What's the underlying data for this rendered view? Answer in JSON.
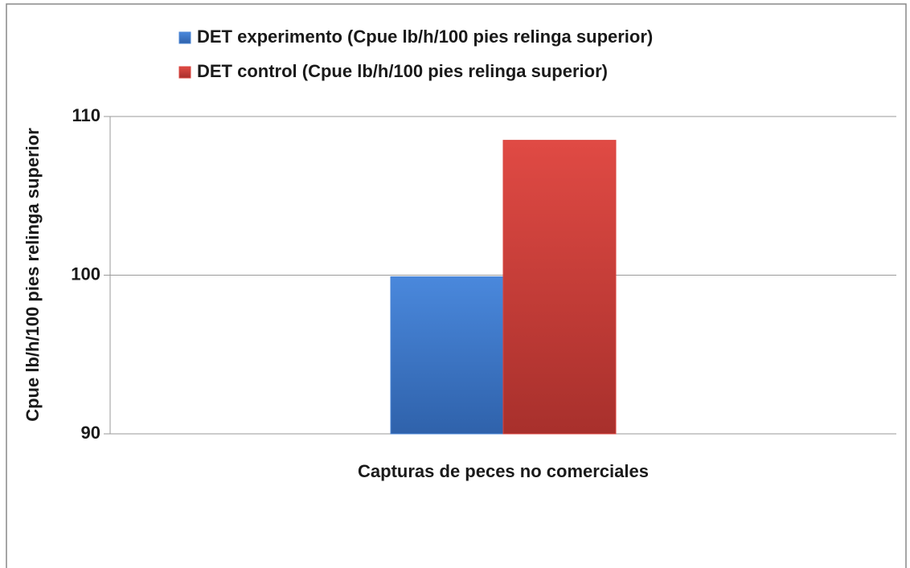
{
  "chart_data": {
    "type": "bar",
    "ylabel": "Cpue lb/h/100 pies relinga superior",
    "xlabel": "Capturas de peces no comerciales",
    "categories": [
      null
    ],
    "series": [
      {
        "name": "DET experimento (Cpue lb/h/100 pies relinga superior)",
        "color": "#4a84d4",
        "values": [
          99.9
        ]
      },
      {
        "name": "DET control (Cpue lb/h/100 pies relinga superior)",
        "color": "#d9443f",
        "values": [
          108.5
        ]
      }
    ],
    "ylim": [
      90,
      110
    ],
    "yticks": [
      90,
      100,
      110
    ],
    "grid": true,
    "legend": "top"
  }
}
